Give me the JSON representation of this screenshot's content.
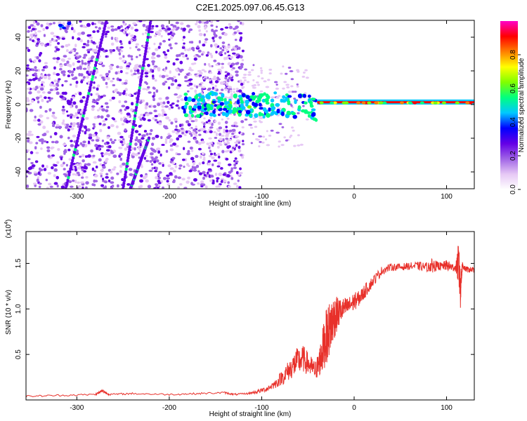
{
  "title": "C2E1.2025.097.06.45.G13",
  "chart_data": [
    {
      "type": "heatmap",
      "xlabel": "Height of straight line (km)",
      "ylabel": "Frequency (Hz)",
      "xlim": [
        -355,
        130
      ],
      "ylim": [
        -50,
        50
      ],
      "xticks": [
        -300,
        -200,
        -100,
        0,
        100
      ],
      "xtick_labels": [
        "-300",
        "-200",
        "-100",
        "0",
        "100"
      ],
      "yticks": [
        -40,
        -20,
        0,
        20,
        40
      ],
      "ytick_labels": [
        "-40",
        "-20",
        "0",
        "20",
        "40"
      ],
      "grid": false,
      "colorbar": {
        "label": "Normalized spectral amplitude",
        "range": [
          0,
          1
        ],
        "ticks": [
          0.0,
          0.2,
          0.4,
          0.6,
          0.8
        ],
        "tick_labels": [
          "0.0",
          "0.2",
          "0.4",
          "0.6",
          "0.8"
        ],
        "colors": [
          "#ffffff",
          "#e6c8f5",
          "#a064e6",
          "#6400e6",
          "#0000ff",
          "#00c8ff",
          "#00ff80",
          "#80ff00",
          "#ffff00",
          "#ff8000",
          "#ff0000",
          "#ff00c8"
        ]
      },
      "features": [
        {
          "kind": "diagonal-trace",
          "x": [
            -250,
            -220
          ],
          "y": [
            -50,
            50
          ],
          "amplitude": 0.3
        },
        {
          "kind": "diagonal-trace",
          "x": [
            -312,
            -268
          ],
          "y": [
            -50,
            50
          ],
          "amplitude": 0.3
        },
        {
          "kind": "diagonal-trace",
          "x": [
            -242,
            -222
          ],
          "y": [
            -50,
            -20
          ],
          "amplitude": 0.3
        },
        {
          "kind": "blob",
          "x": -312,
          "y": 47,
          "amplitude": 0.35
        },
        {
          "kind": "band",
          "x": [
            -185,
            -40
          ],
          "y": [
            0,
            8
          ],
          "amplitude": 0.35
        },
        {
          "kind": "line",
          "x": [
            -40,
            130
          ],
          "y": [
            1,
            2
          ],
          "amplitude": 0.95
        }
      ]
    },
    {
      "type": "line",
      "xlabel": "Height of straight line (km)",
      "ylabel": "SNR (10 * v/v)",
      "y_multiplier": "(x10",
      "y_multiplier_exp": "4",
      "y_multiplier_close": ")",
      "xlim": [
        -355,
        130
      ],
      "ylim": [
        0,
        1.85
      ],
      "xticks": [
        -300,
        -200,
        -100,
        0,
        100
      ],
      "xtick_labels": [
        "-300",
        "-200",
        "-100",
        "0",
        "100"
      ],
      "yticks": [
        0.5,
        1.0,
        1.5
      ],
      "ytick_labels": [
        "0.5",
        "1.0",
        "1.5"
      ],
      "grid": false,
      "series": [
        {
          "color": "#e8302a",
          "x": [
            -355,
            -320,
            -280,
            -272,
            -265,
            -240,
            -200,
            -170,
            -140,
            -130,
            -115,
            -105,
            -95,
            -85,
            -75,
            -68,
            -62,
            -55,
            -48,
            -42,
            -38,
            -34,
            -30,
            -26,
            -22,
            -18,
            -12,
            -6,
            0,
            6,
            12,
            20,
            30,
            40,
            50,
            60,
            70,
            80,
            85,
            90,
            95,
            100,
            105,
            110,
            113,
            115,
            117,
            120,
            125,
            130
          ],
          "y": [
            0.04,
            0.05,
            0.06,
            0.1,
            0.06,
            0.07,
            0.06,
            0.07,
            0.08,
            0.06,
            0.07,
            0.09,
            0.12,
            0.18,
            0.28,
            0.35,
            0.42,
            0.45,
            0.38,
            0.32,
            0.4,
            0.55,
            0.7,
            0.8,
            0.9,
            0.95,
            1.0,
            1.03,
            1.08,
            1.12,
            1.2,
            1.3,
            1.42,
            1.46,
            1.46,
            1.47,
            1.47,
            1.46,
            1.48,
            1.47,
            1.47,
            1.48,
            1.46,
            1.45,
            1.5,
            1.2,
            1.48,
            1.44,
            1.43,
            1.43
          ],
          "noise": [
            0.01,
            0.01,
            0.01,
            0.02,
            0.01,
            0.01,
            0.01,
            0.01,
            0.01,
            0.01,
            0.01,
            0.02,
            0.03,
            0.05,
            0.1,
            0.12,
            0.15,
            0.15,
            0.12,
            0.1,
            0.15,
            0.25,
            0.3,
            0.3,
            0.25,
            0.18,
            0.12,
            0.1,
            0.1,
            0.08,
            0.08,
            0.06,
            0.05,
            0.04,
            0.04,
            0.04,
            0.05,
            0.05,
            0.08,
            0.05,
            0.04,
            0.06,
            0.05,
            0.04,
            0.25,
            0.2,
            0.05,
            0.03,
            0.03,
            0.03
          ]
        }
      ]
    }
  ]
}
